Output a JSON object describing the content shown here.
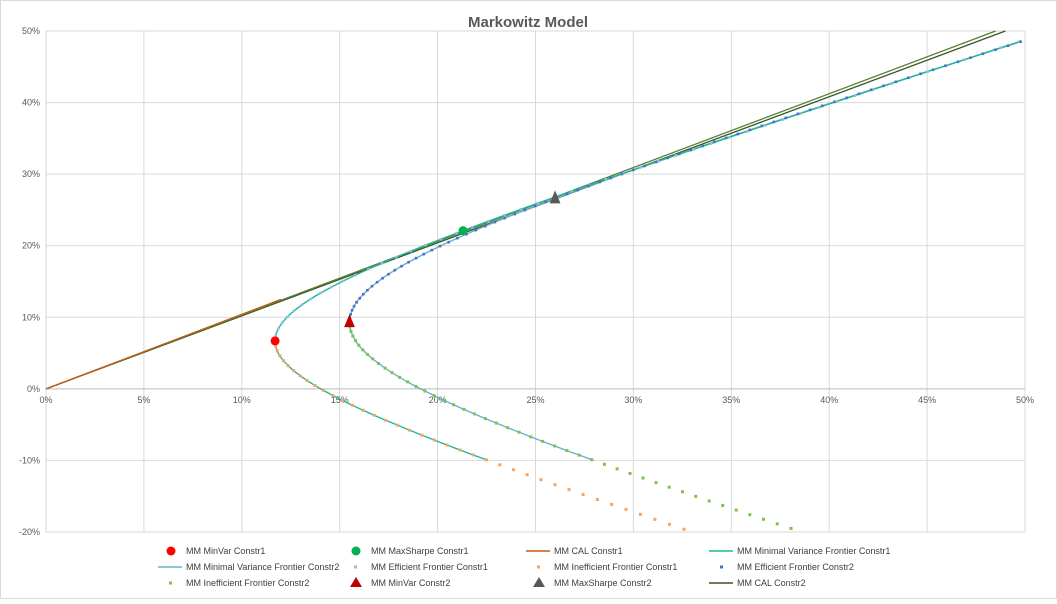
{
  "chart_data": {
    "type": "line",
    "title": "Markowitz Model",
    "xlabel": "",
    "ylabel": "",
    "xlim": [
      0,
      0.5
    ],
    "ylim": [
      -0.2,
      0.5
    ],
    "grid": true,
    "legend_placement": "bottom",
    "x_ticks": [
      "0%",
      "5%",
      "10%",
      "15%",
      "20%",
      "25%",
      "30%",
      "35%",
      "40%",
      "45%",
      "50%"
    ],
    "y_ticks": [
      "-20%",
      "-10%",
      "0%",
      "10%",
      "20%",
      "30%",
      "40%",
      "50%"
    ],
    "frontier1": {
      "min_var": [
        0.117,
        0.067
      ],
      "max_sharpe": [
        0.213,
        0.221
      ],
      "cal_slope": 1.04,
      "split_y": 0.12,
      "efficient_y_max": 0.22,
      "inefficient_y_min": -0.1
    },
    "frontier2": {
      "min_var": [
        0.155,
        0.093
      ],
      "max_sharpe": [
        0.26,
        0.266
      ],
      "cal_slope": 1.02,
      "efficient_y_max": 0.485,
      "inefficient_y_min": -0.2
    },
    "series": [
      {
        "name": "MM MinVar Constr1",
        "kind": "marker-circle",
        "color": "#ff0000",
        "points": [
          [
            0.117,
            0.067
          ]
        ]
      },
      {
        "name": "MM MaxSharpe Constr1",
        "kind": "marker-circle",
        "color": "#00b050",
        "points": [
          [
            0.213,
            0.221
          ]
        ]
      },
      {
        "name": "MM CAL Constr1",
        "kind": "line",
        "color": "#c55a11",
        "line": [
          [
            0,
            0
          ],
          [
            0.12,
            0.125
          ]
        ]
      },
      {
        "name": "MM Minimal Variance Frontier Constr1",
        "kind": "line",
        "color": "#1fb59b",
        "curve": "frontier1"
      },
      {
        "name": "MM Minimal Variance Frontier Constr2",
        "kind": "line",
        "color": "#6aafcf",
        "curve": "frontier2"
      },
      {
        "name": "MM Efficient Frontier Constr1",
        "kind": "dots",
        "color": "#8fbfd8",
        "curve": "frontier1-eff"
      },
      {
        "name": "MM Inefficient Frontier Constr1",
        "kind": "dots",
        "color": "#f4a460",
        "curve": "frontier1-ineff"
      },
      {
        "name": "MM Efficient Frontier Constr2",
        "kind": "dots",
        "color": "#4472c4",
        "curve": "frontier2-eff"
      },
      {
        "name": "MM Inefficient Frontier Constr2",
        "kind": "dots",
        "color": "#7cc44c",
        "curve": "frontier2-ineff"
      },
      {
        "name": "MM MinVar Constr2",
        "kind": "marker-triangle",
        "color": "#c00000",
        "points": [
          [
            0.155,
            0.093
          ]
        ]
      },
      {
        "name": "MM MaxSharpe Constr2",
        "kind": "marker-triangle",
        "color": "#595959",
        "points": [
          [
            0.26,
            0.266
          ]
        ]
      },
      {
        "name": "MM CAL Constr2",
        "kind": "line",
        "color": "#375623",
        "line": [
          [
            0,
            0
          ],
          [
            0.49,
            0.5
          ]
        ]
      }
    ]
  }
}
